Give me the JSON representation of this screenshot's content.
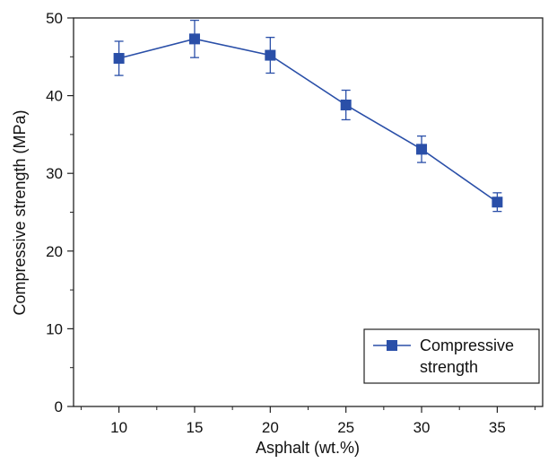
{
  "chart_data": {
    "type": "line",
    "title": "",
    "xlabel": "Asphalt (wt.%)",
    "ylabel": "Compressive strength (MPa)",
    "xlim": [
      7,
      38
    ],
    "ylim": [
      0,
      50
    ],
    "xticks": [
      10,
      15,
      20,
      25,
      30,
      35
    ],
    "xtick_labels": [
      "10",
      "15",
      "20",
      "25",
      "30",
      "35"
    ],
    "yticks": [
      0,
      10,
      20,
      30,
      40,
      50
    ],
    "ytick_labels": [
      "0",
      "10",
      "20",
      "30",
      "40",
      "50"
    ],
    "grid": false,
    "legend_position": "bottom-right",
    "color": "#2a4fa8",
    "series": [
      {
        "name": "Compressive strength",
        "legend_lines": [
          "Compressive",
          "strength"
        ],
        "marker": "square",
        "x": [
          10,
          15,
          20,
          25,
          30,
          35
        ],
        "y": [
          44.8,
          47.3,
          45.2,
          38.8,
          33.1,
          26.3
        ],
        "error": [
          2.2,
          2.4,
          2.3,
          1.9,
          1.7,
          1.2
        ]
      }
    ]
  }
}
